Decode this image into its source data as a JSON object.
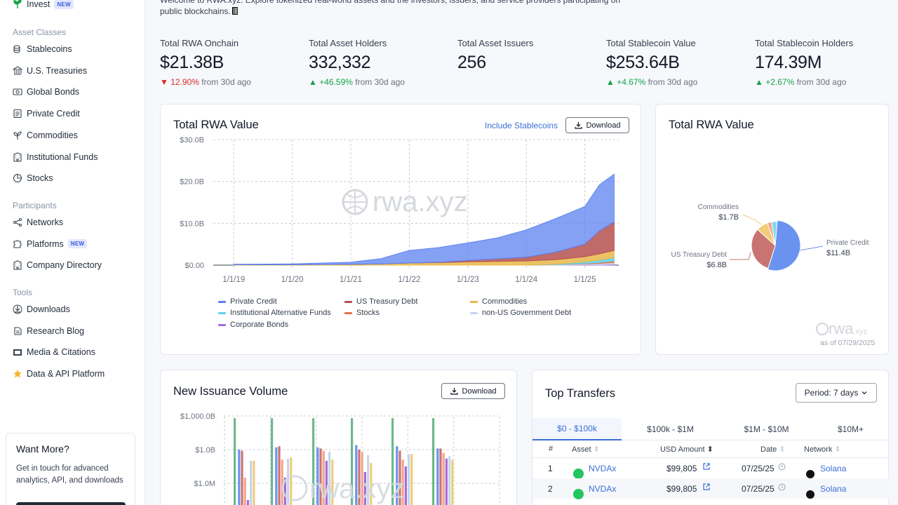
{
  "sidebar": {
    "invest": {
      "label": "Invest",
      "badge": "NEW"
    },
    "asset_classes_title": "Asset Classes",
    "asset_classes": [
      {
        "label": "Stablecoins",
        "icon": "coins-icon"
      },
      {
        "label": "U.S. Treasuries",
        "icon": "bank-icon"
      },
      {
        "label": "Global Bonds",
        "icon": "banknote-icon"
      },
      {
        "label": "Private Credit",
        "icon": "ledger-icon"
      },
      {
        "label": "Commodities",
        "icon": "sprout-icon"
      },
      {
        "label": "Institutional Funds",
        "icon": "building-icon"
      },
      {
        "label": "Stocks",
        "icon": "chart-pie-icon"
      }
    ],
    "participants_title": "Participants",
    "participants": [
      {
        "label": "Networks",
        "icon": "network-icon"
      },
      {
        "label": "Platforms",
        "icon": "puzzle-icon",
        "badge": "NEW"
      },
      {
        "label": "Company Directory",
        "icon": "building-icon"
      }
    ],
    "tools_title": "Tools",
    "tools": [
      {
        "label": "Downloads",
        "icon": "download-icon"
      },
      {
        "label": "Research Blog",
        "icon": "blog-icon"
      },
      {
        "label": "Media & Citations",
        "icon": "media-icon"
      },
      {
        "label": "Data & API Platform",
        "icon": "star-icon"
      }
    ],
    "promo": {
      "title": "Want More?",
      "text": "Get in touch for advanced analytics, API, and downloads"
    }
  },
  "intro": {
    "line1": "Welcome to RWA.xyz. Explore tokenized real-world assets and the investors, issuers, and service providers participating on",
    "line2": "public blockchains."
  },
  "stats": [
    {
      "label": "Total RWA Onchain",
      "value": "$21.38B",
      "change": "▼ 12.90%",
      "dir": "down",
      "suffix": "from 30d ago"
    },
    {
      "label": "Total Asset Holders",
      "value": "332,332",
      "change": "▲ +46.59%",
      "dir": "up",
      "suffix": "from 30d ago"
    },
    {
      "label": "Total Asset Issuers",
      "value": "256",
      "change": "",
      "dir": "",
      "suffix": ""
    },
    {
      "label": "Total Stablecoin Value",
      "value": "$253.64B",
      "change": "▲ +4.67%",
      "dir": "up",
      "suffix": "from 30d ago"
    },
    {
      "label": "Total Stablecoin Holders",
      "value": "174.39M",
      "change": "▲ +2.67%",
      "dir": "up",
      "suffix": "from 30d ago"
    }
  ],
  "rwa_chart": {
    "title": "Total RWA Value",
    "include_link": "Include Stablecoins",
    "download": "Download",
    "watermark": "rwa.xyz"
  },
  "pie_chart": {
    "title": "Total RWA Value",
    "watermark": "rwa.xyz",
    "as_of": "as of 07/29/2025"
  },
  "issuance": {
    "title": "New Issuance Volume",
    "download": "Download",
    "watermark": "rwa.xyz"
  },
  "chart_data": [
    {
      "type": "area",
      "title": "Total RWA Value",
      "x_ticks": [
        "1/1/19",
        "1/1/20",
        "1/1/21",
        "1/1/22",
        "1/1/23",
        "1/1/24",
        "1/1/25"
      ],
      "y_ticks": [
        "$0.00",
        "$10.0B",
        "$20.0B",
        "$30.0B"
      ],
      "ylim": [
        0,
        30
      ],
      "y_unit": "B",
      "x": [
        "2019-01",
        "2020-01",
        "2021-01",
        "2021-07",
        "2022-01",
        "2022-07",
        "2023-01",
        "2023-07",
        "2024-01",
        "2024-07",
        "2025-01",
        "2025-04",
        "2025-07"
      ],
      "series": [
        {
          "name": "Private Credit",
          "color": "#5b82f0",
          "values": [
            0.1,
            0.2,
            0.5,
            1.2,
            3.0,
            3.5,
            4.2,
            5.0,
            6.5,
            8.0,
            9.0,
            11.0,
            11.4
          ]
        },
        {
          "name": "US Treasury Debt",
          "color": "#b5514f",
          "values": [
            0.0,
            0.0,
            0.0,
            0.0,
            0.0,
            0.1,
            0.3,
            0.6,
            0.9,
            1.8,
            3.0,
            5.5,
            6.8
          ]
        },
        {
          "name": "Commodities",
          "color": "#e8b849",
          "values": [
            0.1,
            0.1,
            0.2,
            0.3,
            0.5,
            0.6,
            0.8,
            0.9,
            1.0,
            1.1,
            1.2,
            1.5,
            1.7
          ]
        },
        {
          "name": "Institutional Alternative Funds",
          "color": "#5fd0ea",
          "values": [
            0,
            0,
            0,
            0,
            0,
            0,
            0,
            0,
            0,
            0.1,
            0.4,
            0.6,
            0.8
          ]
        },
        {
          "name": "Stocks",
          "color": "#e8724a",
          "values": [
            0,
            0,
            0,
            0,
            0,
            0,
            0,
            0,
            0,
            0,
            0.1,
            0.2,
            0.4
          ]
        },
        {
          "name": "non-US Government Debt",
          "color": "#c2d6ef",
          "values": [
            0,
            0,
            0,
            0,
            0,
            0,
            0,
            0,
            0,
            0.1,
            0.2,
            0.3,
            0.4
          ]
        },
        {
          "name": "Corporate Bonds",
          "color": "#a46bdc",
          "values": [
            0,
            0,
            0,
            0,
            0,
            0,
            0,
            0,
            0,
            0,
            0.1,
            0.1,
            0.2
          ]
        }
      ]
    },
    {
      "type": "pie",
      "title": "Total RWA Value",
      "slices": [
        {
          "label": "Private Credit",
          "value": 11.4,
          "display": "$11.4B",
          "color": "#6a93f0"
        },
        {
          "label": "US Treasury Debt",
          "value": 6.8,
          "display": "$6.8B",
          "color": "#c97472"
        },
        {
          "label": "Commodities",
          "value": 1.7,
          "display": "$1.7B",
          "color": "#f1cd7a"
        },
        {
          "label": "",
          "value": 0.6,
          "display": "",
          "color": "#f4a48a"
        },
        {
          "label": "",
          "value": 0.8,
          "display": "",
          "color": "#7fdaf0"
        }
      ]
    },
    {
      "type": "bar",
      "title": "New Issuance Volume",
      "y_ticks": [
        "$1.0M",
        "$1.0B",
        "$1,000.0B"
      ],
      "y_scale": "log",
      "groups": 6,
      "series_colors": [
        "#6db88a",
        "#6a93f0",
        "#c97472",
        "#f4a48a",
        "#a46bdc",
        "#c2d6ef",
        "#f1cd7a"
      ],
      "values_log10": [
        [
          11.8,
          9.0,
          8.9,
          6.5,
          4.5,
          8.0,
          8.0
        ],
        [
          11.8,
          9.2,
          9.3,
          8.1,
          6.5,
          8.2,
          8.3
        ],
        [
          11.8,
          9.2,
          9.1,
          8.9,
          8.0,
          8.8,
          8.1
        ],
        [
          11.8,
          9.4,
          9.0,
          8.8,
          7.0,
          8.5,
          7.8
        ],
        [
          11.8,
          9.3,
          8.9,
          8.1,
          7.5,
          8.6,
          8.6
        ],
        [
          11.8,
          9.1,
          9.1,
          8.7,
          8.2,
          8.4,
          8.1
        ]
      ]
    }
  ],
  "transfers": {
    "title": "Top Transfers",
    "period": "Period: 7 days",
    "tabs": [
      "$0 - $100k",
      "$100k - $1M",
      "$1M - $10M",
      "$10M+"
    ],
    "columns": [
      "#",
      "Asset",
      "USD Amount",
      "Date",
      "Network"
    ],
    "rows": [
      {
        "rank": "1",
        "asset": "NVDAx",
        "amount": "$99,805",
        "date": "07/25/25",
        "network": "Solana"
      },
      {
        "rank": "2",
        "asset": "NVDAx",
        "amount": "$99,805",
        "date": "07/25/25",
        "network": "Solana"
      }
    ]
  }
}
